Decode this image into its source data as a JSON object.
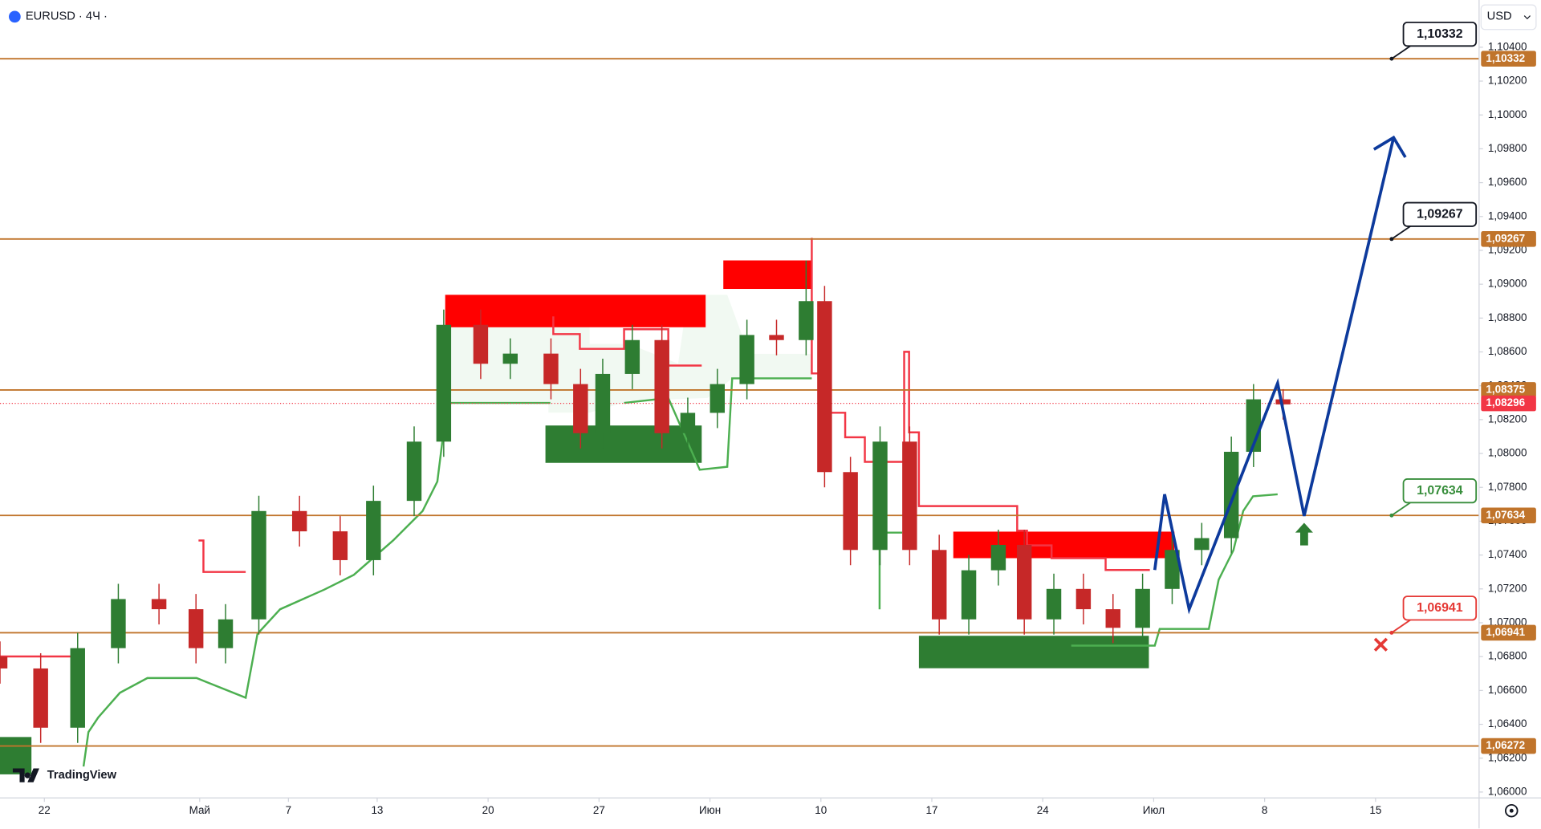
{
  "header": {
    "symbol": "EURUSD · 4Ч ·",
    "currency": "USD",
    "logo": "TradingView"
  },
  "chart_data": {
    "type": "candlestick",
    "up_color": "#2e7d32",
    "down_color": "#c62828",
    "level_color": "#c0742b",
    "xlim": [
      -12,
      388
    ],
    "xticks": [
      {
        "value": 0,
        "label": "22"
      },
      {
        "value": 42,
        "label": "Май"
      },
      {
        "value": 66,
        "label": "7"
      },
      {
        "value": 90,
        "label": "13"
      },
      {
        "value": 120,
        "label": "20"
      },
      {
        "value": 150,
        "label": "27"
      },
      {
        "value": 180,
        "label": "Июн"
      },
      {
        "value": 210,
        "label": "10"
      },
      {
        "value": 240,
        "label": "17"
      },
      {
        "value": 270,
        "label": "24"
      },
      {
        "value": 300,
        "label": "Июл"
      },
      {
        "value": 330,
        "label": "8"
      },
      {
        "value": 360,
        "label": "15"
      }
    ],
    "ylim": [
      1.05965,
      1.10679
    ],
    "yticks": [
      {
        "value": 1.06,
        "label": "1,06000"
      },
      {
        "value": 1.062,
        "label": "1,06200"
      },
      {
        "value": 1.064,
        "label": "1,06400"
      },
      {
        "value": 1.066,
        "label": "1,06600"
      },
      {
        "value": 1.068,
        "label": "1,06800"
      },
      {
        "value": 1.07,
        "label": "1,07000"
      },
      {
        "value": 1.072,
        "label": "1,07200"
      },
      {
        "value": 1.074,
        "label": "1,07400"
      },
      {
        "value": 1.076,
        "label": "1,07600"
      },
      {
        "value": 1.078,
        "label": "1,07800"
      },
      {
        "value": 1.08,
        "label": "1,08000"
      },
      {
        "value": 1.082,
        "label": "1,08200"
      },
      {
        "value": 1.084,
        "label": "1,08400"
      },
      {
        "value": 1.086,
        "label": "1,08600"
      },
      {
        "value": 1.088,
        "label": "1,08800"
      },
      {
        "value": 1.09,
        "label": "1,09000"
      },
      {
        "value": 1.092,
        "label": "1,09200"
      },
      {
        "value": 1.094,
        "label": "1,09400"
      },
      {
        "value": 1.096,
        "label": "1,09600"
      },
      {
        "value": 1.098,
        "label": "1,09800"
      },
      {
        "value": 1.1,
        "label": "1,10000"
      },
      {
        "value": 1.102,
        "label": "1,10200"
      },
      {
        "value": 1.104,
        "label": "1,10400"
      }
    ],
    "x": [
      -12,
      -1,
      9,
      20,
      31,
      41,
      49,
      58,
      69,
      80,
      89,
      100,
      108,
      118,
      126,
      137,
      145,
      151,
      159,
      167,
      174,
      182,
      190,
      198,
      206,
      211,
      218,
      226,
      234,
      242,
      250,
      258,
      265,
      273,
      281,
      289,
      297,
      305,
      313,
      321,
      327,
      335
    ],
    "open": [
      1.068,
      1.0673,
      1.0638,
      1.0685,
      1.0714,
      1.0708,
      1.0685,
      1.0702,
      1.0766,
      1.0754,
      1.0737,
      1.0772,
      1.0807,
      1.0876,
      1.0853,
      1.0859,
      1.0841,
      1.0812,
      1.0847,
      1.0867,
      1.0812,
      1.0824,
      1.0841,
      1.087,
      1.0867,
      1.089,
      1.0789,
      1.0743,
      1.0807,
      1.0743,
      1.0702,
      1.0731,
      1.0746,
      1.0702,
      1.072,
      1.0708,
      1.0697,
      1.072,
      1.0743,
      1.075,
      1.0801,
      1.0832
    ],
    "high": [
      1.0689,
      1.0682,
      1.0694,
      1.0723,
      1.0723,
      1.0717,
      1.0711,
      1.0775,
      1.0775,
      1.0763,
      1.0781,
      1.0816,
      1.0885,
      1.0885,
      1.0868,
      1.0868,
      1.085,
      1.0856,
      1.0876,
      1.0876,
      1.0833,
      1.085,
      1.0879,
      1.0879,
      1.0914,
      1.0899,
      1.0798,
      1.0816,
      1.0816,
      1.0752,
      1.074,
      1.0755,
      1.0755,
      1.0729,
      1.0729,
      1.0717,
      1.0729,
      1.0752,
      1.0759,
      1.081,
      1.0841,
      1.0838
    ],
    "low": [
      1.0664,
      1.0629,
      1.0629,
      1.0676,
      1.0699,
      1.0676,
      1.0676,
      1.0693,
      1.0745,
      1.0728,
      1.0728,
      1.0763,
      1.0798,
      1.0844,
      1.0844,
      1.0832,
      1.0803,
      1.0803,
      1.0838,
      1.0803,
      1.0803,
      1.0815,
      1.0832,
      1.0858,
      1.0858,
      1.078,
      1.0734,
      1.0734,
      1.0734,
      1.0693,
      1.0693,
      1.0722,
      1.0693,
      1.0693,
      1.0699,
      1.0688,
      1.0688,
      1.0711,
      1.0734,
      1.0741,
      1.0792,
      1.082
    ],
    "close": [
      1.0673,
      1.0638,
      1.0685,
      1.0714,
      1.0708,
      1.0685,
      1.0702,
      1.0766,
      1.0754,
      1.0737,
      1.0772,
      1.0807,
      1.0876,
      1.0853,
      1.0859,
      1.0841,
      1.0812,
      1.0847,
      1.0867,
      1.0812,
      1.0824,
      1.0841,
      1.087,
      1.0867,
      1.089,
      1.0789,
      1.0743,
      1.0807,
      1.0743,
      1.0702,
      1.0731,
      1.0746,
      1.0702,
      1.072,
      1.0708,
      1.0697,
      1.072,
      1.0743,
      1.075,
      1.0801,
      1.0832,
      1.0829
    ],
    "levels": [
      {
        "value": 1.10332,
        "label": "1,10332",
        "callout_color": "#131722"
      },
      {
        "value": 1.09267,
        "label": "1,09267",
        "callout_color": "#131722"
      },
      {
        "value": 1.08375,
        "label": "1,08375"
      },
      {
        "value": 1.07634,
        "label": "1,07634",
        "callout_color": "#388e3c"
      },
      {
        "value": 1.06941,
        "label": "1,06941",
        "callout_color": "#e53935"
      },
      {
        "value": 1.06272,
        "label": "1,06272"
      }
    ],
    "current_price": {
      "value": 1.08296,
      "label": "1,08296",
      "color": "#f23645"
    }
  }
}
